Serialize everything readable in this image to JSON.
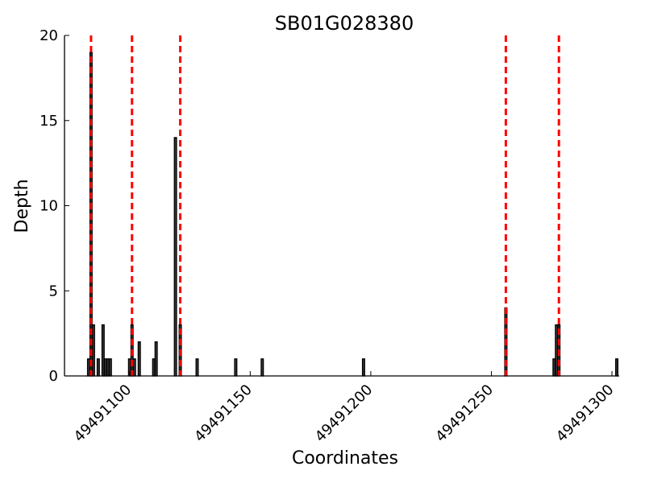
{
  "chart_data": {
    "type": "bar",
    "title": "SB01G028380",
    "xlabel": "Coordinates",
    "ylabel": "Depth",
    "xlim": [
      49491073,
      49491303
    ],
    "ylim": [
      0,
      20
    ],
    "xticks": [
      49491100,
      49491150,
      49491200,
      49491250,
      49491300
    ],
    "xtick_labels": [
      "49491100",
      "49491150",
      "49491200",
      "49491250",
      "49491300"
    ],
    "yticks": [
      0,
      5,
      10,
      15,
      20
    ],
    "ytick_labels": [
      "0",
      "5",
      "10",
      "15",
      "20"
    ],
    "grid": false,
    "bar_color": "#3a3a3a",
    "bar_edge_color": "#000000",
    "reference_line_color": "#ff0000",
    "series": [
      {
        "x": [
          49491083,
          49491084,
          49491085,
          49491087,
          49491089,
          49491090,
          49491091,
          49491092,
          49491100,
          49491101,
          49491102,
          49491104,
          49491110,
          49491111,
          49491119,
          49491121,
          49491128,
          49491144,
          49491155,
          49491197,
          49491256,
          49491276,
          49491277,
          49491278,
          49491302
        ],
        "values": [
          1,
          19,
          3,
          1,
          3,
          1,
          1,
          1,
          1,
          3,
          1,
          2,
          1,
          2,
          14,
          3,
          1,
          1,
          1,
          1,
          4,
          1,
          3,
          3,
          1
        ]
      }
    ],
    "reference_lines_x": [
      49491084,
      49491101,
      49491121,
      49491256,
      49491278
    ]
  }
}
